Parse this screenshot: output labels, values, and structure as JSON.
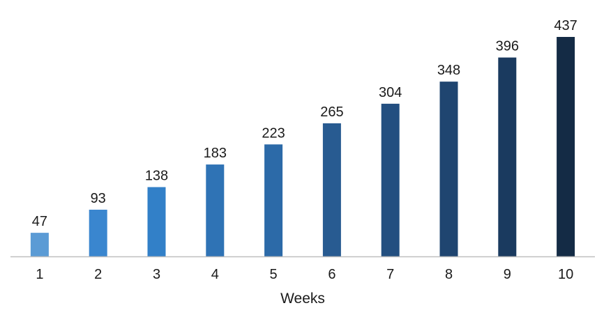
{
  "chart_data": {
    "type": "bar",
    "title": "",
    "xlabel": "Weeks",
    "ylabel": "",
    "categories": [
      "1",
      "2",
      "3",
      "4",
      "5",
      "6",
      "7",
      "8",
      "9",
      "10"
    ],
    "values": [
      47,
      93,
      138,
      183,
      223,
      265,
      304,
      348,
      396,
      437
    ],
    "value_labels": [
      "47",
      "93",
      "138",
      "183",
      "223",
      "265",
      "304",
      "348",
      "396",
      "437"
    ],
    "ylim": [
      0,
      437
    ],
    "grid": false,
    "legend": "none",
    "bar_colors": [
      "#5b9bd5",
      "#3a86cf",
      "#3280c8",
      "#2f73b5",
      "#2c6aa8",
      "#285b91",
      "#234f80",
      "#1f4570",
      "#1a3a5f",
      "#142b45"
    ],
    "axis_color": "#bfbfbf"
  }
}
